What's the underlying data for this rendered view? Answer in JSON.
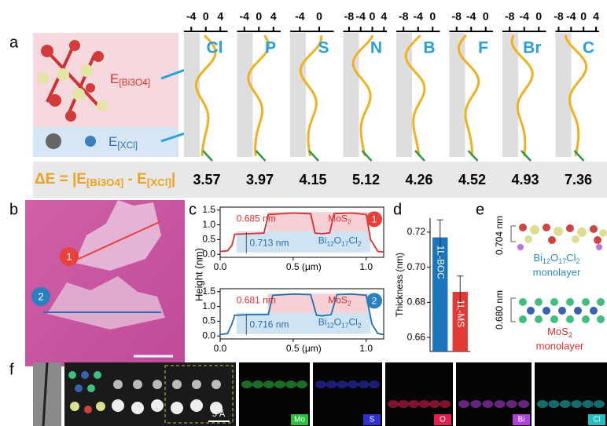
{
  "panel_labels": [
    "a",
    "b",
    "c",
    "d",
    "e",
    "f"
  ],
  "panel_a": {
    "columns": [
      {
        "element": "Cl",
        "ticks": [
          -4,
          0,
          4
        ],
        "xlim": [
          -6,
          6
        ],
        "delta_e": 3.57
      },
      {
        "element": "P",
        "ticks": [
          -4,
          0,
          4
        ],
        "xlim": [
          -6,
          6
        ],
        "delta_e": 3.97
      },
      {
        "element": "S",
        "ticks": [
          -4,
          0
        ],
        "xlim": [
          -6,
          3
        ],
        "delta_e": 4.15
      },
      {
        "element": "N",
        "ticks": [
          -8,
          -4,
          0,
          4
        ],
        "xlim": [
          -10,
          5
        ],
        "delta_e": 5.12
      },
      {
        "element": "B",
        "ticks": [
          -8,
          -4,
          0
        ],
        "xlim": [
          -10,
          2
        ],
        "delta_e": 4.26
      },
      {
        "element": "F",
        "ticks": [
          -8,
          -4,
          0
        ],
        "xlim": [
          -10,
          2
        ],
        "delta_e": 4.52
      },
      {
        "element": "Br",
        "ticks": [
          -8,
          -4,
          0
        ],
        "xlim": [
          -10,
          2
        ],
        "delta_e": 4.93
      },
      {
        "element": "C",
        "ticks": [
          -8,
          -4,
          0,
          4
        ],
        "xlim": [
          -9,
          5
        ],
        "delta_e": 7.36
      }
    ],
    "e_bi3o4": [
      {
        "t": "E"
      },
      {
        "sub": "[Bi3O4]"
      }
    ],
    "e_xcl": [
      {
        "t": "E"
      },
      {
        "sub": "[XCl]"
      }
    ],
    "delta_eq": [
      {
        "t": "ΔE = "
      },
      {
        "t": "|E"
      },
      {
        "sub": "[Bi3O4]"
      },
      {
        "t": " - E"
      },
      {
        "sub": "[XCl]"
      },
      {
        "t": "|"
      }
    ]
  },
  "panel_b": {
    "markers": [
      "1",
      "2"
    ]
  },
  "chart_data": [
    {
      "type": "line",
      "ylabel": "Height (nm)",
      "xlim": [
        0,
        1.12
      ],
      "ylim": [
        -0.1,
        1.6
      ],
      "xticks": [
        {
          "value": 0,
          "label": "0.0"
        },
        {
          "value": 0.5,
          "label": "0.5 (μm)"
        },
        {
          "value": 1,
          "label": "1.0"
        }
      ],
      "yticks": [
        {
          "value": 0,
          "label": "0.0"
        },
        0.5,
        {
          "value": 1,
          "label": "1.0"
        },
        1.5
      ],
      "series": [
        {
          "color": "#d9302c",
          "x": [
            0,
            0.05,
            0.08,
            0.1,
            0.2,
            0.3,
            0.33,
            0.5,
            0.62,
            0.65,
            0.7,
            0.75,
            0.78,
            0.9,
            1.0,
            1.03,
            1.08,
            1.12
          ],
          "values": [
            0.1,
            0.12,
            0.3,
            0.68,
            0.7,
            0.72,
            1.35,
            1.4,
            1.38,
            0.72,
            0.7,
            0.73,
            1.38,
            1.4,
            1.35,
            0.5,
            0.1,
            0.08
          ]
        }
      ],
      "annotations": [
        "0.685 nm",
        "0.713 nm"
      ],
      "layer_top": [
        {
          "t": "MoS"
        },
        {
          "sub": "2"
        }
      ],
      "layer_bottom": [
        {
          "t": "Bi"
        },
        {
          "sub": "12"
        },
        {
          "t": "O"
        },
        {
          "sub": "17"
        },
        {
          "t": "Cl"
        },
        {
          "sub": "2"
        }
      ],
      "marker": "1",
      "marker_color": "#e8403a"
    },
    {
      "type": "line",
      "xlim": [
        0,
        1.12
      ],
      "ylim": [
        -0.1,
        1.6
      ],
      "xticks": [
        {
          "value": 0,
          "label": "0.0"
        },
        {
          "value": 0.5,
          "label": "0.5 (μm)"
        },
        {
          "value": 1,
          "label": "1.0"
        }
      ],
      "yticks": [
        {
          "value": 0,
          "label": "0.0"
        },
        0.5,
        {
          "value": 1,
          "label": "1.0"
        },
        1.5
      ],
      "series": [
        {
          "color": "#1f6fb4",
          "x": [
            0,
            0.05,
            0.08,
            0.1,
            0.2,
            0.33,
            0.36,
            0.5,
            0.62,
            0.66,
            0.7,
            0.76,
            0.8,
            0.9,
            1.0,
            1.04,
            1.08,
            1.12
          ],
          "values": [
            0.05,
            0.08,
            0.4,
            0.7,
            0.72,
            0.73,
            1.38,
            1.42,
            1.4,
            0.7,
            0.68,
            0.72,
            1.4,
            1.42,
            1.38,
            0.4,
            0.08,
            0.05
          ]
        }
      ],
      "annotations": [
        "0.681 nm",
        "0.716 nm"
      ],
      "layer_top": [
        {
          "t": "MoS"
        },
        {
          "sub": "2"
        }
      ],
      "layer_bottom": [
        {
          "t": "Bi"
        },
        {
          "sub": "12"
        },
        {
          "t": "O"
        },
        {
          "sub": "17"
        },
        {
          "t": "Cl"
        },
        {
          "sub": "2"
        }
      ],
      "marker": "2",
      "marker_color": "#2a7fc0"
    },
    {
      "type": "bar",
      "ylabel": "Thickness (nm)",
      "categories": [
        "1L-BOC",
        "1L-MS"
      ],
      "values": [
        0.717,
        0.686
      ],
      "errors": [
        0.01,
        0.009
      ],
      "colors": [
        "#1b75bb",
        "#e23b36"
      ],
      "ylim": [
        0.652,
        0.728
      ],
      "yticks": [
        0.66,
        0.68,
        {
          "value": 0.7,
          "label": "0.70"
        },
        0.72
      ]
    }
  ],
  "panel_e": {
    "thickness_1": "0.704 nm",
    "formula_1": [
      {
        "t": "Bi"
      },
      {
        "sub": "12"
      },
      {
        "t": "O"
      },
      {
        "sub": "17"
      },
      {
        "t": "Cl"
      },
      {
        "sub": "2"
      }
    ],
    "label_1": "monolayer",
    "thickness_2": "0.680 nm",
    "formula_2": [
      {
        "t": "MoS"
      },
      {
        "sub": "2"
      }
    ],
    "label_2": "monolayer"
  },
  "panel_f": {
    "scale": "5 Å",
    "maps": [
      "Mo",
      "S",
      "O",
      "Bi",
      "Cl"
    ]
  }
}
